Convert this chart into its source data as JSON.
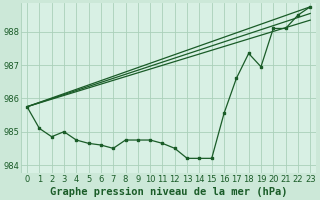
{
  "background_color": "#cce8d8",
  "plot_bg_color": "#d8f0e4",
  "grid_color": "#aad0ba",
  "line_color": "#1a5c28",
  "xlabel": "Graphe pression niveau de la mer (hPa)",
  "xlabel_fontsize": 7.5,
  "tick_fontsize": 6.0,
  "xlim": [
    -0.5,
    23.5
  ],
  "ylim": [
    983.75,
    988.85
  ],
  "yticks": [
    984,
    985,
    986,
    987,
    988
  ],
  "xticks": [
    0,
    1,
    2,
    3,
    4,
    5,
    6,
    7,
    8,
    9,
    10,
    11,
    12,
    13,
    14,
    15,
    16,
    17,
    18,
    19,
    20,
    21,
    22,
    23
  ],
  "data_x": [
    0,
    1,
    2,
    3,
    4,
    5,
    6,
    7,
    8,
    9,
    10,
    11,
    12,
    13,
    14,
    15,
    16,
    17,
    18,
    19,
    20,
    21,
    22,
    23
  ],
  "data_y": [
    985.75,
    985.1,
    984.85,
    985.0,
    984.75,
    984.65,
    984.6,
    984.5,
    984.75,
    984.75,
    984.75,
    984.65,
    984.5,
    984.2,
    984.2,
    984.2,
    985.55,
    986.6,
    987.35,
    986.95,
    988.1,
    988.1,
    988.5,
    988.75
  ],
  "line1_x": [
    0,
    23
  ],
  "line1_y": [
    985.75,
    988.75
  ],
  "line2_x": [
    0,
    23
  ],
  "line2_y": [
    985.75,
    988.55
  ],
  "line3_x": [
    0,
    23
  ],
  "line3_y": [
    985.75,
    988.35
  ]
}
